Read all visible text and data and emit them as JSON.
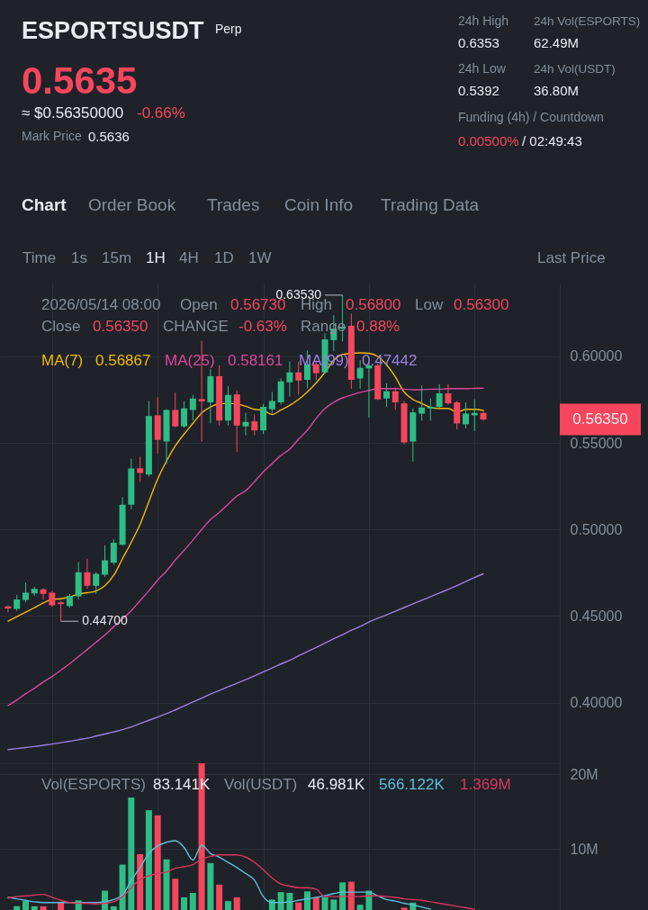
{
  "chart_data": [
    {
      "type": "other",
      "title": "ESPORTSUSDT",
      "annotations": [
        "Perp",
        "0.5635",
        "≈ $0.56350000",
        "-0.66%",
        "Mark Price",
        "0.5636",
        "24h High",
        "0.6353",
        "24h Vol(ESPORTS)",
        "62.49M",
        "24h Low",
        "0.5392",
        "24h Vol(USDT)",
        "36.80M",
        "Funding (4h) / Countdown",
        "0.00500%",
        "/ 02:49:43",
        "Chart",
        "Order Book",
        "Trades",
        "Coin Info",
        "Trading Data",
        "Time",
        "1s",
        "15m",
        "1H",
        "4H",
        "1D",
        "1W",
        "Last Price"
      ]
    },
    {
      "type": "candlestick",
      "categories": [
        null,
        null,
        null,
        null,
        null,
        null,
        null,
        null,
        null,
        null,
        null,
        null,
        null,
        null,
        null,
        null,
        null,
        null,
        null,
        null,
        null,
        null,
        null,
        null,
        null,
        null,
        null,
        null,
        null,
        null,
        null,
        null,
        null,
        null,
        null,
        null,
        null,
        null,
        null,
        null,
        null,
        null,
        null,
        null,
        null,
        null,
        null,
        null,
        null,
        null,
        null,
        null,
        null,
        null,
        null
      ],
      "ohlc": [
        [
          0.4556,
          0.4562,
          0.4522,
          0.4544
        ],
        [
          0.4541,
          0.4622,
          0.453,
          0.4596
        ],
        [
          0.4593,
          0.4692,
          0.4579,
          0.4635
        ],
        [
          0.4631,
          0.4669,
          0.4617,
          0.4657
        ],
        [
          0.4654,
          0.4661,
          0.4596,
          0.4628
        ],
        [
          0.4635,
          0.4645,
          0.4553,
          0.4562
        ],
        [
          0.4579,
          0.4588,
          0.447,
          0.4569
        ],
        [
          0.4558,
          0.4628,
          0.4548,
          0.4617
        ],
        [
          0.4614,
          0.4813,
          0.4596,
          0.4753
        ],
        [
          0.4753,
          0.4831,
          0.4657,
          0.4675
        ],
        [
          0.4675,
          0.4753,
          0.4628,
          0.4744
        ],
        [
          0.4739,
          0.4909,
          0.4727,
          0.4822
        ],
        [
          0.4808,
          0.4944,
          0.4796,
          0.4923
        ],
        [
          0.4912,
          0.5187,
          0.4905,
          0.5143
        ],
        [
          0.5143,
          0.5409,
          0.5117,
          0.5352
        ],
        [
          0.5353,
          0.5421,
          0.5274,
          0.5326
        ],
        [
          0.5317,
          0.5742,
          0.5305,
          0.5655
        ],
        [
          0.5659,
          0.5763,
          0.5438,
          0.5517
        ],
        [
          0.5508,
          0.5694,
          0.5378,
          0.569
        ],
        [
          0.569,
          0.5791,
          0.559,
          0.5595
        ],
        [
          0.5595,
          0.5742,
          0.5586,
          0.5699
        ],
        [
          0.569,
          0.5777,
          0.5629,
          0.5756
        ],
        [
          0.5753,
          0.609,
          0.5508,
          0.5739
        ],
        [
          0.5734,
          0.5925,
          0.5612,
          0.5885
        ],
        [
          0.5885,
          0.5947,
          0.56,
          0.5629
        ],
        [
          0.5629,
          0.5829,
          0.56,
          0.5777
        ],
        [
          0.578,
          0.5803,
          0.5447,
          0.56
        ],
        [
          0.5595,
          0.5673,
          0.5543,
          0.5621
        ],
        [
          0.5624,
          0.5664,
          0.5543,
          0.5572
        ],
        [
          0.5572,
          0.5725,
          0.5551,
          0.5708
        ],
        [
          0.5694,
          0.5794,
          0.5673,
          0.5742
        ],
        [
          0.5734,
          0.5872,
          0.5721,
          0.5855
        ],
        [
          0.585,
          0.5971,
          0.5768,
          0.5907
        ],
        [
          0.5907,
          0.5968,
          0.5777,
          0.586
        ],
        [
          0.5864,
          0.6034,
          0.5815,
          0.5954
        ],
        [
          0.5954,
          0.5977,
          0.5864,
          0.5902
        ],
        [
          0.5907,
          0.6133,
          0.5899,
          0.6098
        ],
        [
          0.6093,
          0.6237,
          0.6029,
          0.6159
        ],
        [
          0.6159,
          0.6353,
          0.6085,
          0.617
        ],
        [
          0.6176,
          0.6246,
          0.5812,
          0.5864
        ],
        [
          0.5872,
          0.5977,
          0.5812,
          0.5933
        ],
        [
          0.593,
          0.5968,
          0.5647,
          0.5947
        ],
        [
          0.5947,
          0.5959,
          0.5746,
          0.5751
        ],
        [
          0.5756,
          0.5843,
          0.5708,
          0.5798
        ],
        [
          0.5798,
          0.582,
          0.569,
          0.5734
        ],
        [
          0.5728,
          0.5742,
          0.5491,
          0.5503
        ],
        [
          0.5508,
          0.5699,
          0.5392,
          0.5676
        ],
        [
          0.5669,
          0.5833,
          0.5629,
          0.5704
        ],
        [
          0.5699,
          0.5756,
          0.5629,
          0.5708
        ],
        [
          0.5708,
          0.5838,
          0.5699,
          0.5786
        ],
        [
          0.5786,
          0.5838,
          0.5721,
          0.5728
        ],
        [
          0.5734,
          0.5742,
          0.5577,
          0.5612
        ],
        [
          0.5607,
          0.5734,
          0.5583,
          0.5669
        ],
        [
          0.5659,
          0.5751,
          0.5569,
          0.5673
        ],
        [
          0.5673,
          0.568,
          0.563,
          0.5635
        ]
      ],
      "colors": [
        "#f6465d",
        "#2ebd85",
        "#2ebd85",
        "#2ebd85",
        "#f6465d",
        "#f6465d",
        "#f6465d",
        "#2ebd85",
        "#2ebd85",
        "#f6465d",
        "#2ebd85",
        "#2ebd85",
        "#2ebd85",
        "#2ebd85",
        "#2ebd85",
        "#f6465d",
        "#2ebd85",
        "#f6465d",
        "#2ebd85",
        "#f6465d",
        "#2ebd85",
        "#2ebd85",
        "#f6465d",
        "#2ebd85",
        "#f6465d",
        "#2ebd85",
        "#f6465d",
        "#2ebd85",
        "#f6465d",
        "#2ebd85",
        "#2ebd85",
        "#2ebd85",
        "#2ebd85",
        "#f6465d",
        "#2ebd85",
        "#f6465d",
        "#2ebd85",
        "#2ebd85",
        "#2ebd85",
        "#f6465d",
        "#2ebd85",
        "#2ebd85",
        "#f6465d",
        "#2ebd85",
        "#f6465d",
        "#f6465d",
        "#2ebd85",
        "#2ebd85",
        "#2ebd85",
        "#2ebd85",
        "#f6465d",
        "#f6465d",
        "#2ebd85",
        "#2ebd85",
        "#f6465d"
      ],
      "series": [
        {
          "name": "MA(7)",
          "type": "line",
          "color": "#f0b90b",
          "values": [
            0.4471,
            0.4497,
            0.4523,
            0.4548,
            0.4576,
            0.4596,
            0.46,
            0.461,
            0.4628,
            0.4635,
            0.4645,
            0.4675,
            0.4735,
            0.4831,
            0.4926,
            0.503,
            0.5161,
            0.5291,
            0.5395,
            0.5482,
            0.5551,
            0.5612,
            0.5673,
            0.5708,
            0.5725,
            0.5728,
            0.5725,
            0.5711,
            0.5694,
            0.5687,
            0.5664,
            0.569,
            0.5716,
            0.5751,
            0.5794,
            0.5846,
            0.5907,
            0.5977,
            0.6011,
            0.6017,
            0.602,
            0.6017,
            0.5999,
            0.5951,
            0.5881,
            0.5794,
            0.5751,
            0.5728,
            0.5704,
            0.5699,
            0.5699,
            0.5676,
            0.5694,
            0.5694,
            0.5687
          ]
        },
        {
          "name": "MA(25)",
          "type": "line",
          "color": "#d9479b",
          "values": [
            0.3984,
            0.4016,
            0.4052,
            0.4083,
            0.412,
            0.4151,
            0.4188,
            0.4224,
            0.4266,
            0.4307,
            0.4349,
            0.4391,
            0.4438,
            0.4484,
            0.4531,
            0.4589,
            0.4646,
            0.4708,
            0.476,
            0.4823,
            0.488,
            0.4938,
            0.5,
            0.5057,
            0.5099,
            0.5146,
            0.5193,
            0.5224,
            0.5276,
            0.5333,
            0.538,
            0.5427,
            0.5464,
            0.5521,
            0.5573,
            0.5641,
            0.5698,
            0.5734,
            0.576,
            0.5776,
            0.5792,
            0.5802,
            0.5813,
            0.5813,
            0.5813,
            0.581,
            0.5807,
            0.5807,
            0.581,
            0.581,
            0.5813,
            0.5813,
            0.5813,
            0.5815,
            0.5816
          ]
        },
        {
          "name": "MA(99)",
          "type": "line",
          "color": "#9b7fe3",
          "values": [
            0.3729,
            0.3735,
            0.3741,
            0.3747,
            0.3754,
            0.3761,
            0.3769,
            0.3777,
            0.3786,
            0.3795,
            0.3807,
            0.3819,
            0.3831,
            0.3844,
            0.386,
            0.3879,
            0.3898,
            0.3917,
            0.3936,
            0.3958,
            0.3981,
            0.4004,
            0.4026,
            0.4049,
            0.407,
            0.4092,
            0.4112,
            0.4133,
            0.4155,
            0.4178,
            0.42,
            0.4223,
            0.4245,
            0.427,
            0.4295,
            0.4319,
            0.4344,
            0.4369,
            0.4393,
            0.4418,
            0.444,
            0.4465,
            0.4487,
            0.4507,
            0.4528,
            0.4549,
            0.457,
            0.4591,
            0.4612,
            0.4633,
            0.4654,
            0.4676,
            0.4699,
            0.4723,
            0.4744
          ]
        }
      ],
      "ylim": [
        0.365,
        0.642
      ],
      "yticks": [
        {
          "value": 0.4,
          "label": "0.40000"
        },
        {
          "value": 0.45,
          "label": "0.45000"
        },
        {
          "value": 0.5,
          "label": "0.50000"
        },
        {
          "value": 0.55,
          "label": "0.55000"
        },
        {
          "value": 0.6,
          "label": "0.60000"
        }
      ],
      "grid": true,
      "legend": "top left",
      "tick_labels": "y",
      "annotations": [
        "2026/05/14 08:00",
        "Open",
        "0.56730",
        "High",
        "0.56800",
        "Low",
        "0.56300",
        "Close",
        "0.56350",
        "CHANGE",
        "-0.63%",
        "Range",
        "0.88%",
        "0.56867",
        "0.58161",
        "0.47442",
        "0.63530",
        "0.44700",
        "0.56350"
      ]
    },
    {
      "type": "bar",
      "categories": [
        null,
        null,
        null,
        null,
        null,
        null,
        null,
        null,
        null,
        null,
        null,
        null,
        null,
        null,
        null,
        null,
        null,
        null,
        null,
        null,
        null,
        null,
        null,
        null,
        null,
        null,
        null,
        null,
        null,
        null,
        null,
        null,
        null,
        null,
        null,
        null,
        null,
        null,
        null,
        null,
        null,
        null,
        null,
        null,
        null,
        null,
        null,
        null,
        null,
        null,
        null,
        null,
        null,
        null,
        null
      ],
      "series": [
        {
          "values": [
            null,
            2.3,
            3.0,
            2.3,
            2.3,
            null,
            2.9,
            null,
            3.1,
            null,
            null,
            4.4,
            2.3,
            7.9,
            16.9,
            9.3,
            15.2,
            14.5,
            8.6,
            6.0,
            3.5,
            4.1,
            21.5,
            8.1,
            5.2,
            3.0,
            3.5,
            null,
            null,
            null,
            3.2,
            4.2,
            4.1,
            2.8,
            4.3,
            3.5,
            3.5,
            3.2,
            5.5,
            5.6,
            2.5,
            4.4,
            null,
            null,
            null,
            2.1,
            2.8,
            null,
            null,
            null,
            null,
            null,
            null,
            null,
            null
          ],
          "colors": [
            "#f6465d",
            "#2ebd85",
            "#2ebd85",
            "#2ebd85",
            "#f6465d",
            "#f6465d",
            "#f6465d",
            "#2ebd85",
            "#2ebd85",
            "#f6465d",
            "#2ebd85",
            "#2ebd85",
            "#2ebd85",
            "#2ebd85",
            "#2ebd85",
            "#f6465d",
            "#2ebd85",
            "#f6465d",
            "#2ebd85",
            "#f6465d",
            "#2ebd85",
            "#2ebd85",
            "#f6465d",
            "#2ebd85",
            "#f6465d",
            "#2ebd85",
            "#f6465d",
            "#2ebd85",
            "#f6465d",
            "#2ebd85",
            "#2ebd85",
            "#2ebd85",
            "#2ebd85",
            "#f6465d",
            "#2ebd85",
            "#f6465d",
            "#2ebd85",
            "#2ebd85",
            "#2ebd85",
            "#f6465d",
            "#2ebd85",
            "#2ebd85",
            "#f6465d",
            "#2ebd85",
            "#f6465d",
            "#f6465d",
            "#2ebd85",
            "#2ebd85",
            "#2ebd85",
            "#2ebd85",
            "#f6465d",
            "#f6465d",
            "#2ebd85",
            "#2ebd85",
            "#f6465d"
          ]
        },
        {
          "type": "line",
          "color": "#5cc0dc",
          "values": [
            3.5,
            3.3,
            3.1,
            2.9,
            2.8,
            2.8,
            2.8,
            2.8,
            2.8,
            2.8,
            2.8,
            2.9,
            3.2,
            3.8,
            5.8,
            7.5,
            9.4,
            10.4,
            10.9,
            11.1,
            10.2,
            8.5,
            10.5,
            9.4,
            8.9,
            8.2,
            7.5,
            6.7,
            5.8,
            3.6,
            2.8,
            2.8,
            2.9,
            3.1,
            3.3,
            3.5,
            3.7,
            4.0,
            4.2,
            4.2,
            4.2,
            4.2,
            3.7,
            3.2,
            3.0,
            2.7,
            2.5,
            2.2,
            1.9,
            null,
            null,
            null,
            null,
            null,
            null
          ]
        },
        {
          "type": "line",
          "color": "#d8365f",
          "values": [
            3.4,
            3.6,
            3.7,
            3.8,
            3.9,
            3.5,
            3.1,
            2.8,
            2.7,
            2.7,
            2.6,
            2.7,
            2.9,
            3.6,
            4.8,
            5.9,
            6.4,
            6.7,
            6.9,
            7.4,
            7.6,
            7.9,
            8.6,
            9.0,
            9.2,
            9.2,
            9.2,
            8.9,
            8.2,
            7.2,
            6.1,
            5.3,
            5.0,
            4.8,
            4.8,
            4.6,
            3.6,
            3.6,
            3.6,
            3.6,
            3.6,
            3.7,
            3.7,
            3.6,
            3.5,
            3.3,
            3.2,
            3.1,
            2.9,
            2.7,
            2.5,
            2.3,
            2.1,
            1.9,
            null
          ]
        }
      ],
      "ylim": [
        1.8,
        21.5
      ],
      "yticks": [
        {
          "value": 10,
          "label": "10M"
        },
        {
          "value": 20,
          "label": "20M"
        }
      ],
      "grid": true,
      "tick_labels": "y",
      "annotations": [
        "Vol(ESPORTS)",
        "83.141K",
        "Vol(USDT)",
        "46.981K",
        "566.122K",
        "1.369M"
      ]
    }
  ]
}
